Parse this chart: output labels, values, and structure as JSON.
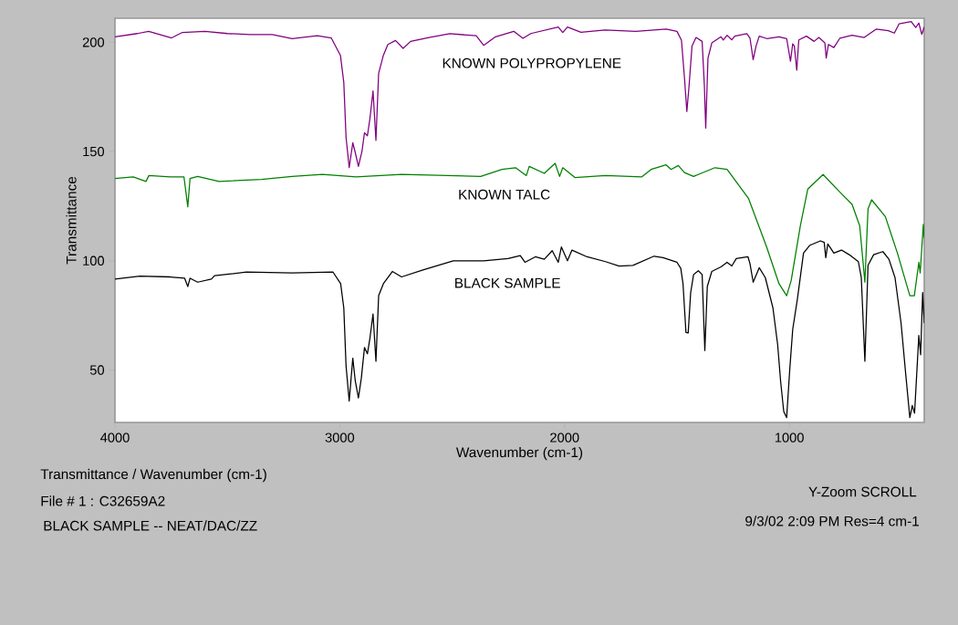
{
  "chart_data": {
    "type": "line",
    "xlabel": "Wavenumber (cm-1)",
    "ylabel": "Transmittance",
    "xlim": [
      4000,
      400
    ],
    "ylim": [
      26,
      211
    ],
    "xticks": [
      4000,
      3000,
      2000,
      1000
    ],
    "yticks": [
      50,
      100,
      150,
      200
    ],
    "series": [
      {
        "name": "KNOWN POLYPROPYLENE",
        "color": "#800080",
        "x": [
          4000,
          3900,
          3850,
          3748,
          3700,
          3600,
          3500,
          3400,
          3300,
          3212,
          3100,
          3038,
          2997,
          2982,
          2972,
          2958,
          2942,
          2931,
          2917,
          2901,
          2890,
          2877,
          2866,
          2852,
          2839,
          2827,
          2806,
          2786,
          2752,
          2718,
          2685,
          2603,
          2510,
          2393,
          2360,
          2307,
          2226,
          2185,
          2150,
          2028,
          2008,
          1987,
          1927,
          1820,
          1683,
          1548,
          1500,
          1480,
          1467,
          1456,
          1446,
          1433,
          1415,
          1388,
          1378,
          1372,
          1362,
          1345,
          1304,
          1294,
          1277,
          1256,
          1243,
          1189,
          1175,
          1161,
          1148,
          1134,
          1100,
          1046,
          1012,
          995,
          985,
          978,
          967,
          958,
          924,
          890,
          869,
          842,
          836,
          826,
          802,
          775,
          721,
          667,
          614,
          560,
          533,
          512,
          458,
          438,
          424,
          411,
          400
        ],
        "values": [
          202.5,
          204,
          205,
          202,
          204.5,
          205,
          204,
          203.5,
          203.5,
          201.7,
          203,
          202,
          194,
          181.6,
          156.5,
          142.6,
          154,
          149.5,
          143.2,
          150.2,
          158.6,
          157.2,
          164.9,
          177.7,
          155.1,
          185.8,
          194,
          199,
          200.8,
          197.2,
          200.4,
          202.2,
          203.9,
          203,
          198.6,
          202.5,
          205,
          201.8,
          204,
          207,
          204.5,
          207,
          204.6,
          205.6,
          205,
          206,
          205,
          201,
          184.4,
          168.3,
          180.2,
          198.3,
          202.2,
          200.4,
          180.2,
          160.7,
          192.8,
          199.7,
          202.5,
          201,
          203.2,
          201.1,
          202.8,
          203.9,
          201.9,
          192,
          198.3,
          202.8,
          201.7,
          202.5,
          201.7,
          191.3,
          199.3,
          198.3,
          187.2,
          201.1,
          202.8,
          200.4,
          202.2,
          199.7,
          192.8,
          199,
          197.6,
          201.9,
          203.2,
          202.2,
          206,
          205.3,
          204.2,
          208.4,
          209.5,
          206.8,
          208.8,
          203.6,
          207
        ]
      },
      {
        "name": "KNOWN TALC",
        "color": "#008000",
        "x": [
          4000,
          3919,
          3862,
          3849,
          3754,
          3693,
          3676,
          3666,
          3632,
          3537,
          3348,
          3212,
          3077,
          2928,
          2725,
          2373,
          2278,
          2218,
          2170,
          2157,
          2090,
          2042,
          2022,
          2008,
          1954,
          1818,
          1656,
          1615,
          1548,
          1526,
          1494,
          1467,
          1426,
          1331,
          1277,
          1182,
          1101,
          1046,
          1012,
          992,
          951,
          918,
          850,
          775,
          721,
          687,
          664,
          650,
          634,
          573,
          519,
          464,
          444,
          424,
          418,
          404,
          400
        ],
        "values": [
          137.7,
          138.4,
          136.3,
          139,
          138.4,
          138.4,
          124.7,
          137.7,
          138.6,
          136.3,
          137.2,
          138.6,
          139.5,
          138.4,
          139.5,
          138.6,
          141.8,
          142.6,
          139,
          143.2,
          140,
          144.6,
          138.6,
          142.6,
          138.1,
          139,
          138.4,
          141.8,
          143.9,
          141.8,
          143.6,
          140.4,
          138.6,
          142.6,
          141.8,
          128.6,
          106.3,
          89.5,
          84,
          90.9,
          116,
          132.8,
          139.5,
          131.4,
          125.8,
          116,
          90.2,
          123.7,
          127.9,
          120.2,
          103.4,
          84,
          84,
          99.3,
          94.4,
          116.7,
          110.5
        ]
      },
      {
        "name": "BLACK SAMPLE",
        "color": "#000000",
        "x": [
          4000,
          3889,
          3754,
          3690,
          3676,
          3666,
          3632,
          3571,
          3557,
          3483,
          3415,
          3212,
          3030,
          2996,
          2982,
          2972,
          2958,
          2942,
          2931,
          2917,
          2904,
          2890,
          2877,
          2866,
          2852,
          2839,
          2827,
          2806,
          2766,
          2725,
          2630,
          2495,
          2360,
          2251,
          2197,
          2176,
          2130,
          2090,
          2055,
          2028,
          2014,
          1987,
          1967,
          1900,
          1818,
          1757,
          1696,
          1602,
          1562,
          1500,
          1483,
          1473,
          1460,
          1450,
          1439,
          1426,
          1405,
          1388,
          1376,
          1365,
          1345,
          1304,
          1277,
          1256,
          1236,
          1184,
          1175,
          1161,
          1134,
          1107,
          1073,
          1052,
          1039,
          1025,
          1012,
          998,
          985,
          964,
          937,
          910,
          862,
          845,
          838,
          829,
          802,
          768,
          734,
          693,
          680,
          664,
          650,
          625,
          584,
          557,
          530,
          503,
          482,
          464,
          453,
          443,
          424,
          416,
          407,
          400
        ],
        "values": [
          91.6,
          93,
          92.6,
          92,
          88.2,
          92,
          90.2,
          91.6,
          93.2,
          94,
          94.8,
          94.4,
          94.8,
          89.5,
          78.4,
          51.9,
          35.8,
          55.4,
          45,
          37.2,
          46.3,
          60.3,
          57.4,
          64.4,
          75.6,
          54,
          84,
          89.5,
          95.1,
          92.6,
          95.8,
          100,
          100,
          101,
          102.4,
          99.3,
          101.8,
          100.7,
          104.6,
          99.3,
          106.3,
          100,
          104.9,
          101.8,
          99.6,
          97.6,
          97.9,
          102.1,
          101.4,
          99.3,
          96.5,
          89.5,
          67.2,
          67,
          85.4,
          93.7,
          95.4,
          93.7,
          58.9,
          88.2,
          95.1,
          97.2,
          99.3,
          97.6,
          101,
          101.8,
          98.6,
          90.2,
          96.8,
          92.3,
          78.4,
          61.6,
          45,
          31,
          28.2,
          50.5,
          68.6,
          82.6,
          103.5,
          107,
          109.1,
          108.4,
          101.4,
          107.7,
          103.5,
          104.9,
          102.8,
          99.6,
          92.3,
          54,
          97.9,
          102.8,
          104.2,
          100.7,
          92.3,
          71.4,
          47.7,
          28.2,
          33.8,
          30.2,
          65.8,
          57,
          85.4,
          71.4
        ]
      }
    ],
    "annotations": [
      "Transmittance / Wavenumber (cm-1)",
      "File # 1 : C32659A2",
      "BLACK SAMPLE -- NEAT/DAC/ZZ",
      "Y-Zoom SCROLL",
      "9/3/02 2:09 PM Res=4 cm-1"
    ]
  }
}
